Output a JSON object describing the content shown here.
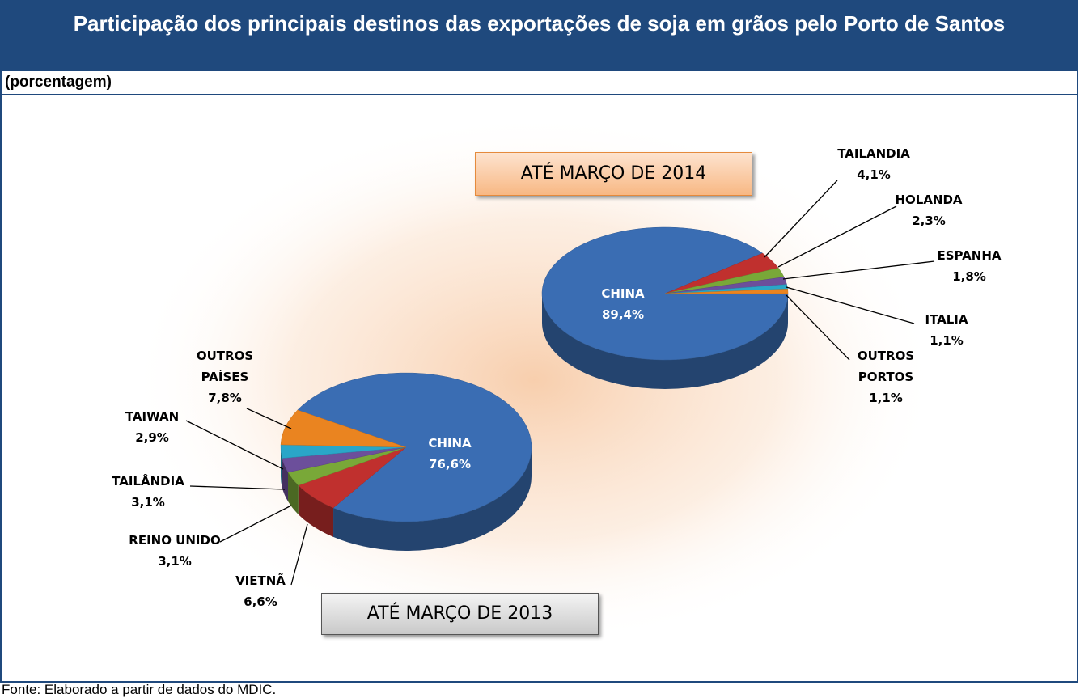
{
  "title": "Participação dos principais destinos das exportações de soja em grãos pelo Porto de Santos",
  "subtitle": "(porcentagem)",
  "source": "Fonte: Elaborado a partir de dados do MDIC.",
  "chart_data": [
    {
      "type": "pie",
      "title": "ATÉ MARÇO DE 2014",
      "categories": [
        "CHINA",
        "TAILANDIA",
        "HOLANDA",
        "ESPANHA",
        "ITALIA",
        "OUTROS PORTOS"
      ],
      "values": [
        89.4,
        4.1,
        2.3,
        1.8,
        1.1,
        1.1
      ],
      "value_labels": [
        "89,4%",
        "4,1%",
        "2,3%",
        "1,8%",
        "1,1%",
        "1,1%"
      ],
      "colors": [
        "#3a6db3",
        "#c0302e",
        "#79a838",
        "#6c4f9b",
        "#2aa6c8",
        "#ea8420"
      ]
    },
    {
      "type": "pie",
      "title": "ATÉ MARÇO DE 2013",
      "categories": [
        "CHINA",
        "VIETNÃ",
        "REINO UNIDO",
        "TAILÂNDIA",
        "TAIWAN",
        "OUTROS PAÍSES"
      ],
      "values": [
        76.6,
        6.6,
        3.1,
        3.1,
        2.9,
        7.8
      ],
      "value_labels": [
        "76,6%",
        "6,6%",
        "3,1%",
        "3,1%",
        "2,9%",
        "7,8%"
      ],
      "colors": [
        "#3a6db3",
        "#c0302e",
        "#79a838",
        "#6c4f9b",
        "#2aa6c8",
        "#ea8420"
      ]
    }
  ]
}
